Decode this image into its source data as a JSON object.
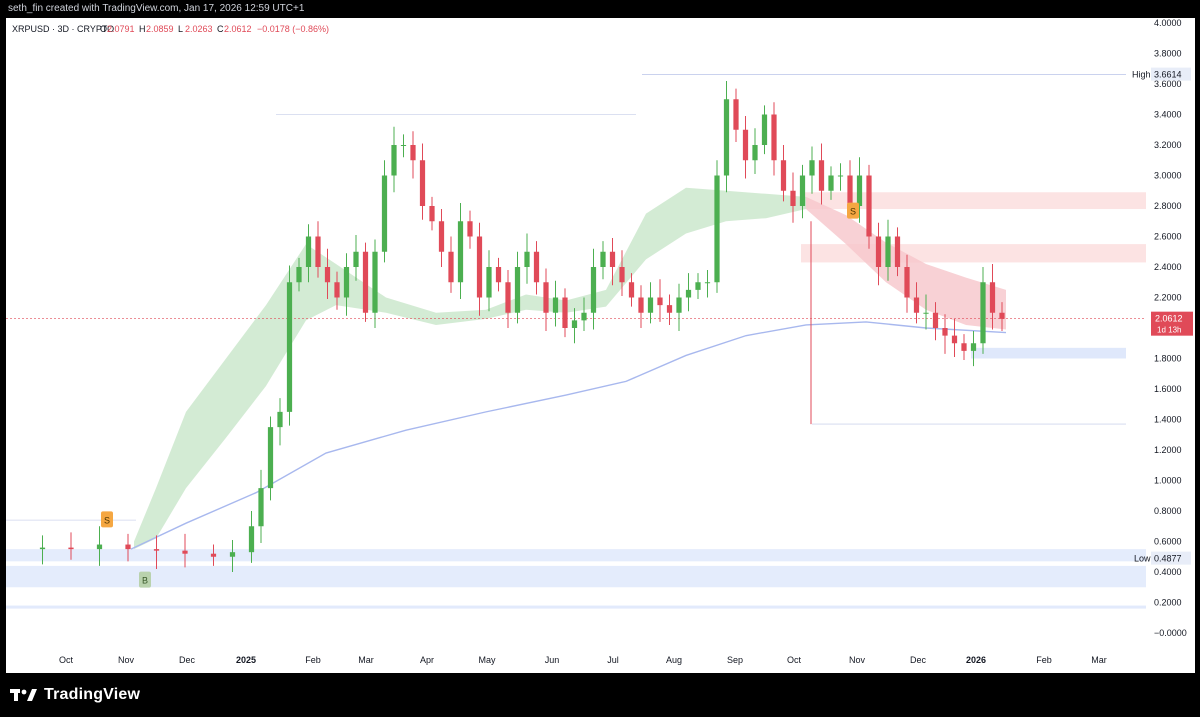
{
  "header": {
    "credit": "seth_fin created with TradingView.com, Jan 17, 2026 12:59 UTC+1"
  },
  "legend": {
    "symbol": "XRPUSD · 3D · CRYPTO",
    "o_label": "O",
    "o_value": "2.0791",
    "h_label": "H",
    "h_value": "2.0859",
    "l_label": "L",
    "l_value": "2.0263",
    "c_label": "C",
    "c_value": "2.0612",
    "change": "−0.0178 (−0.86%)"
  },
  "footer": {
    "brand": "TradingView"
  },
  "colors": {
    "up": "#4caf50",
    "down": "#e04a58",
    "ema_fill_up": "#c8e6c9",
    "ema_fill_down": "#f6c6cb",
    "sma200": "#a8b8ee",
    "zone_red": "#fbdcdc",
    "zone_blue": "#dbe5fb",
    "badge": "#f5a742"
  },
  "chart_data": {
    "type": "candlestick",
    "symbol": "XRPUSD",
    "timeframe": "3D",
    "ylim": [
      -0.0,
      4.0
    ],
    "y_ticks": [
      "4.0000",
      "3.8000",
      "3.6000",
      "3.4000",
      "3.2000",
      "3.0000",
      "2.8000",
      "2.6000",
      "2.4000",
      "2.2000",
      "2.0000",
      "1.8000",
      "1.6000",
      "1.4000",
      "1.2000",
      "1.0000",
      "0.8000",
      "0.6000",
      "0.4000",
      "0.2000",
      "−0.0000"
    ],
    "x_ticks": [
      "Oct",
      "Nov",
      "Dec",
      "2025",
      "Feb",
      "Mar",
      "Apr",
      "May",
      "Jun",
      "Jul",
      "Aug",
      "Sep",
      "Oct",
      "Nov",
      "Dec",
      "2026",
      "Feb",
      "Mar"
    ],
    "price_labels": [
      {
        "label": "High",
        "value": "3.6614"
      },
      {
        "label": "Low",
        "value": "0.4877"
      }
    ],
    "last_price": {
      "value": "2.0612",
      "countdown": "1d 13h"
    },
    "markers": [
      {
        "text": "S",
        "kind": "sell"
      },
      {
        "text": "B",
        "kind": "buy"
      },
      {
        "text": "S",
        "kind": "sell"
      }
    ],
    "price_path": [
      [
        0,
        0.55
      ],
      [
        3,
        0.56
      ],
      [
        6,
        0.55
      ],
      [
        9,
        0.58
      ],
      [
        12,
        0.55
      ],
      [
        15,
        0.54
      ],
      [
        18,
        0.52
      ],
      [
        21,
        0.5
      ],
      [
        23,
        0.53
      ],
      [
        25,
        0.7
      ],
      [
        26,
        0.95
      ],
      [
        27,
        1.35
      ],
      [
        28,
        1.45
      ],
      [
        29,
        2.3
      ],
      [
        30,
        2.4
      ],
      [
        31,
        2.6
      ],
      [
        32,
        2.4
      ],
      [
        33,
        2.3
      ],
      [
        34,
        2.2
      ],
      [
        35,
        2.4
      ],
      [
        36,
        2.5
      ],
      [
        37,
        2.1
      ],
      [
        38,
        2.5
      ],
      [
        39,
        3.0
      ],
      [
        40,
        3.2
      ],
      [
        41,
        3.2
      ],
      [
        42,
        3.1
      ],
      [
        43,
        2.8
      ],
      [
        44,
        2.7
      ],
      [
        45,
        2.5
      ],
      [
        46,
        2.3
      ],
      [
        47,
        2.7
      ],
      [
        48,
        2.6
      ],
      [
        49,
        2.2
      ],
      [
        50,
        2.4
      ],
      [
        51,
        2.3
      ],
      [
        52,
        2.1
      ],
      [
        53,
        2.4
      ],
      [
        54,
        2.5
      ],
      [
        55,
        2.3
      ],
      [
        56,
        2.1
      ],
      [
        57,
        2.2
      ],
      [
        58,
        2.0
      ],
      [
        59,
        2.05
      ],
      [
        60,
        2.1
      ],
      [
        61,
        2.4
      ],
      [
        62,
        2.5
      ],
      [
        63,
        2.4
      ],
      [
        64,
        2.3
      ],
      [
        65,
        2.2
      ],
      [
        66,
        2.1
      ],
      [
        67,
        2.2
      ],
      [
        68,
        2.15
      ],
      [
        69,
        2.1
      ],
      [
        70,
        2.2
      ],
      [
        71,
        2.25
      ],
      [
        72,
        2.3
      ],
      [
        73,
        2.3
      ],
      [
        74,
        3.0
      ],
      [
        75,
        3.5
      ],
      [
        76,
        3.3
      ],
      [
        77,
        3.1
      ],
      [
        78,
        3.2
      ],
      [
        79,
        3.4
      ],
      [
        80,
        3.1
      ],
      [
        81,
        2.9
      ],
      [
        82,
        2.8
      ],
      [
        83,
        3.0
      ],
      [
        84,
        3.1
      ],
      [
        85,
        2.9
      ],
      [
        86,
        3.0
      ],
      [
        87,
        3.0
      ],
      [
        88,
        2.8
      ],
      [
        89,
        3.0
      ],
      [
        90,
        2.6
      ],
      [
        91,
        2.4
      ],
      [
        92,
        2.6
      ],
      [
        93,
        2.4
      ],
      [
        94,
        2.2
      ],
      [
        95,
        2.1
      ],
      [
        96,
        2.1
      ],
      [
        97,
        2.0
      ],
      [
        98,
        1.95
      ],
      [
        99,
        1.9
      ],
      [
        100,
        1.85
      ],
      [
        101,
        1.9
      ],
      [
        102,
        2.3
      ],
      [
        103,
        2.1
      ],
      [
        104,
        2.06
      ]
    ]
  }
}
